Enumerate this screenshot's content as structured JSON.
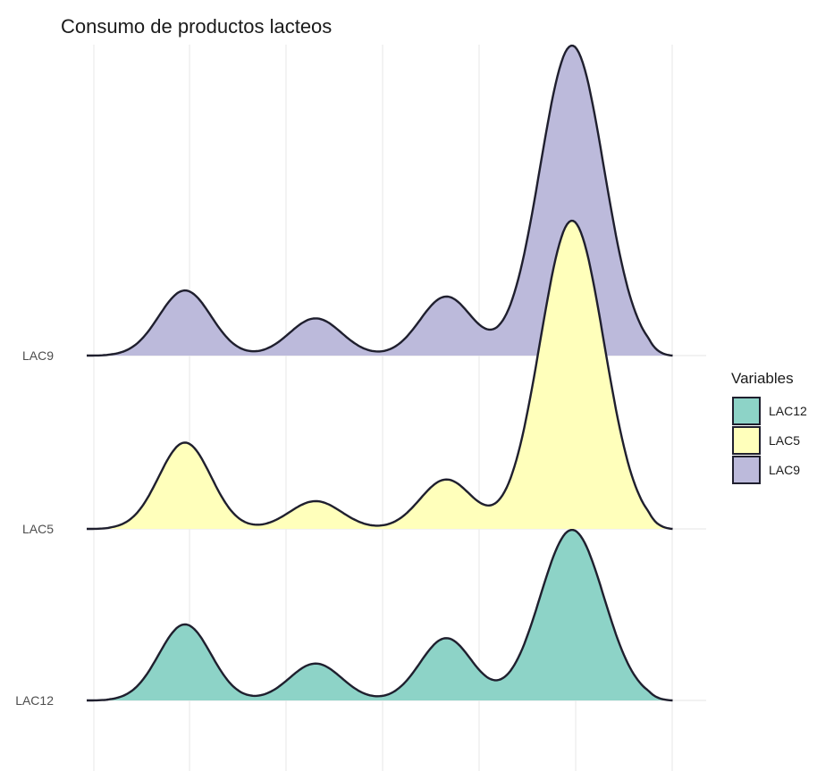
{
  "chart_data": {
    "type": "ridgeline",
    "title": "Consumo de productos lacteos",
    "xlabel": "",
    "ylabel": "",
    "x_ticks_labeled": false,
    "grid": true,
    "legend": {
      "title": "Variables",
      "position": "right",
      "entries": [
        "LAC12",
        "LAC5",
        "LAC9"
      ]
    },
    "categories": [
      "LAC9",
      "LAC5",
      "LAC12"
    ],
    "series": [
      {
        "name": "LAC9",
        "color": "#bcbadb",
        "peaks": [
          {
            "x": 1,
            "height": 0.21,
            "width": 0.27
          },
          {
            "x": 2.35,
            "height": 0.12,
            "width": 0.27
          },
          {
            "x": 3.7,
            "height": 0.19,
            "width": 0.27
          },
          {
            "x": 5,
            "height": 1.0,
            "width": 0.33
          }
        ]
      },
      {
        "name": "LAC5",
        "color": "#ffffbb",
        "peaks": [
          {
            "x": 1,
            "height": 0.28,
            "width": 0.27
          },
          {
            "x": 2.35,
            "height": 0.09,
            "width": 0.27
          },
          {
            "x": 3.7,
            "height": 0.16,
            "width": 0.27
          },
          {
            "x": 5,
            "height": 1.0,
            "width": 0.33
          }
        ]
      },
      {
        "name": "LAC12",
        "color": "#8dd3c7",
        "peaks": [
          {
            "x": 1,
            "height": 0.33,
            "width": 0.27
          },
          {
            "x": 2.35,
            "height": 0.16,
            "width": 0.27
          },
          {
            "x": 3.7,
            "height": 0.27,
            "width": 0.27
          },
          {
            "x": 5,
            "height": 0.74,
            "width": 0.33
          }
        ]
      }
    ],
    "xlim": [
      0,
      6
    ]
  }
}
